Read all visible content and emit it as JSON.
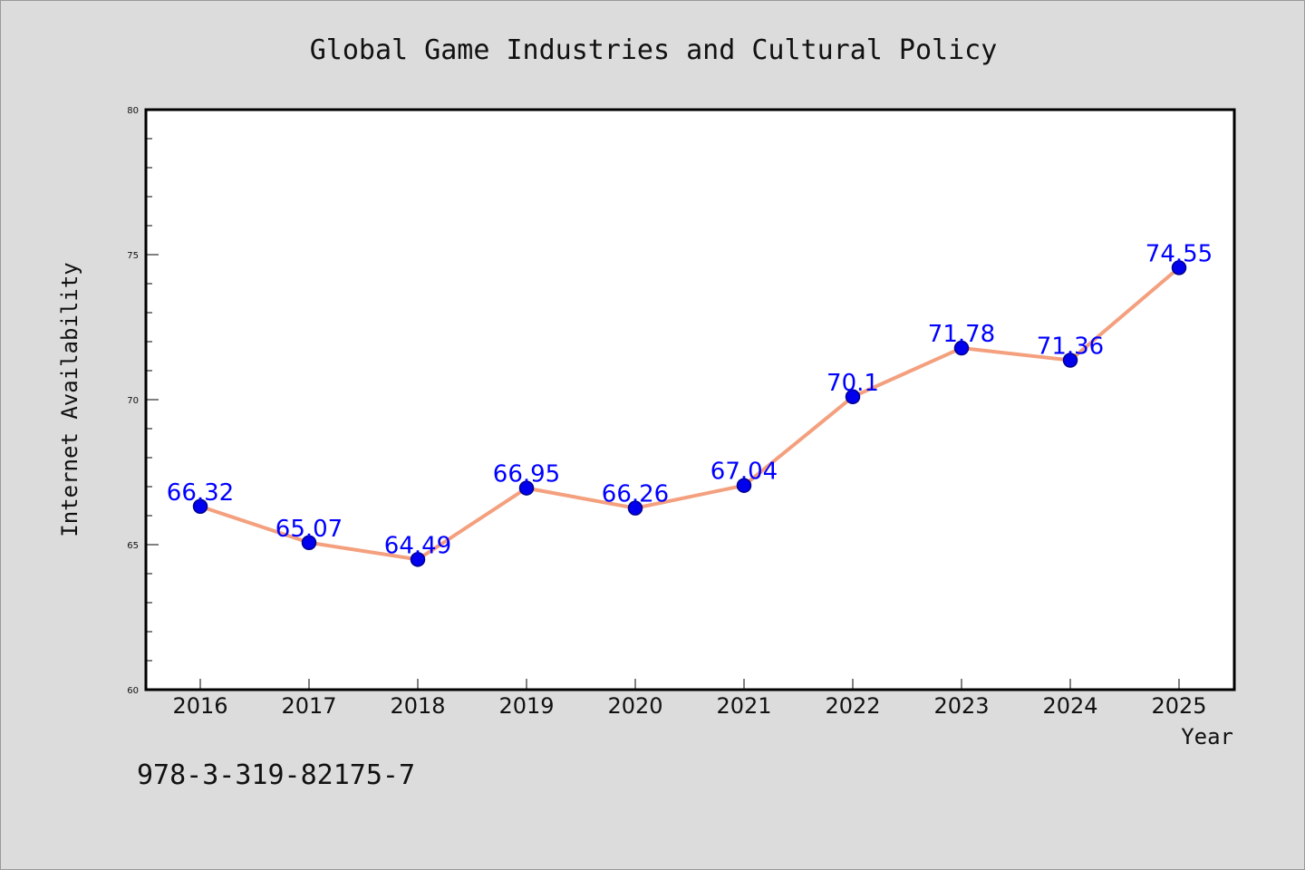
{
  "chart_data": {
    "type": "line",
    "title": "Global Game Industries and Cultural Policy",
    "xlabel": "Year",
    "ylabel": "Internet Availability",
    "categories": [
      "2016",
      "2017",
      "2018",
      "2019",
      "2020",
      "2021",
      "2022",
      "2023",
      "2024",
      "2025"
    ],
    "series": [
      {
        "values": [
          66.32,
          65.07,
          64.49,
          66.95,
          66.26,
          67.04,
          70.1,
          71.78,
          71.36,
          74.55
        ],
        "data_labels": [
          "66.32",
          "65.07",
          "64.49",
          "66.95",
          "66.26",
          "67.04",
          "70.1",
          "71.78",
          "71.36",
          "74.55"
        ]
      }
    ],
    "ylim": [
      60,
      80
    ],
    "yticks": [
      "60",
      "65",
      "70",
      "75",
      "80"
    ],
    "grid": false,
    "legend": "none",
    "colors": {
      "line": "#f4a07e",
      "marker": "#0000ee",
      "marker_edge": "#00008b",
      "data_label": "#0000ff",
      "plot_background": "#ffffff",
      "figure_background": "#dcdcdc"
    }
  },
  "footer": {
    "isbn": "978-3-319-82175-7"
  }
}
